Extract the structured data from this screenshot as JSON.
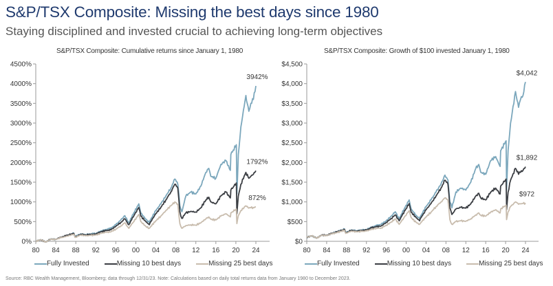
{
  "header": {
    "title": "S&P/TSX Composite: Missing the best days since 1980",
    "subtitle": "Staying disciplined and invested crucial to achieving long-term objectives"
  },
  "footer": {
    "source": "Source: RBC Wealth Management, Bloomberg; data through 12/31/23. Note: Calculations based on daily total returns data from January 1980 to December 2023."
  },
  "colors": {
    "fully_invested": "#7ba7bc",
    "missing_10": "#3a3d42",
    "missing_25": "#c8bcad",
    "axis": "#999999"
  },
  "chart_data": [
    {
      "type": "line",
      "title": "S&P/TSX Composite: Cumulative returns since January 1, 1980",
      "xlabel": "",
      "ylabel": "",
      "xlim": [
        1980,
        2024
      ],
      "ylim": [
        0,
        4500
      ],
      "x_tick_values": [
        1980,
        1984,
        1988,
        1992,
        1996,
        2000,
        2004,
        2008,
        2012,
        2016,
        2020,
        2024
      ],
      "x_tick_labels": [
        "80",
        "84",
        "88",
        "92",
        "96",
        "00",
        "04",
        "08",
        "12",
        "16",
        "20",
        "24"
      ],
      "y_tick_values": [
        0,
        500,
        1000,
        1500,
        2000,
        2500,
        3000,
        3500,
        4000,
        4500
      ],
      "y_tick_labels": [
        "0%",
        "500%",
        "1000%",
        "1500%",
        "2000%",
        "2500%",
        "3000%",
        "3500%",
        "4000%",
        "4500%"
      ],
      "grid": false,
      "legend": "bottom",
      "x": [
        1980,
        1981,
        1982,
        1983,
        1984,
        1985,
        1986,
        1987.6,
        1987.85,
        1988,
        1989,
        1990,
        1991,
        1992,
        1993,
        1994,
        1995,
        1996,
        1997,
        1997.8,
        1998.6,
        1999,
        2000.6,
        2001,
        2002,
        2002.7,
        2003,
        2004,
        2005,
        2006,
        2007,
        2007.8,
        2008.4,
        2008.8,
        2009.2,
        2010,
        2011,
        2012,
        2013,
        2014,
        2014.6,
        2015,
        2016,
        2017,
        2018,
        2018.9,
        2019,
        2020.1,
        2020.2,
        2020.5,
        2021,
        2022,
        2022.6,
        2023,
        2023.5,
        2024
      ],
      "series": [
        {
          "name": "Fully Invested",
          "end_label": "3942%",
          "values": [
            0,
            40,
            -20,
            60,
            50,
            100,
            140,
            210,
            120,
            130,
            190,
            170,
            190,
            200,
            260,
            300,
            330,
            420,
            540,
            650,
            470,
            580,
            950,
            720,
            560,
            470,
            560,
            780,
            950,
            1150,
            1350,
            1580,
            1450,
            900,
            750,
            1150,
            1250,
            1200,
            1400,
            1750,
            1850,
            1650,
            1600,
            1950,
            2050,
            1800,
            2200,
            2450,
            1200,
            2200,
            2900,
            3700,
            3300,
            3500,
            3600,
            3942
          ]
        },
        {
          "name": "Missing 10 best days",
          "end_label": "1792%",
          "values": [
            0,
            40,
            -20,
            60,
            50,
            100,
            140,
            200,
            110,
            120,
            180,
            160,
            175,
            185,
            240,
            270,
            290,
            380,
            480,
            570,
            420,
            520,
            860,
            640,
            500,
            420,
            500,
            700,
            860,
            1050,
            1250,
            1450,
            1350,
            750,
            580,
            720,
            760,
            740,
            850,
            1050,
            1120,
            1000,
            950,
            1150,
            1250,
            1100,
            1300,
            1480,
            700,
            1150,
            1450,
            1750,
            1600,
            1650,
            1700,
            1792
          ]
        },
        {
          "name": "Missing 25 best days",
          "end_label": "872%",
          "values": [
            0,
            40,
            -20,
            55,
            45,
            90,
            120,
            180,
            100,
            110,
            160,
            140,
            150,
            160,
            200,
            230,
            240,
            310,
            390,
            470,
            330,
            400,
            680,
            500,
            380,
            330,
            380,
            520,
            640,
            780,
            900,
            1000,
            940,
            450,
            330,
            400,
            420,
            410,
            470,
            570,
            620,
            560,
            540,
            640,
            700,
            620,
            720,
            820,
            450,
            650,
            780,
            900,
            840,
            850,
            860,
            872
          ]
        }
      ]
    },
    {
      "type": "line",
      "title": "S&P/TSX Composite: Growth of $100 invested January 1, 1980",
      "xlabel": "",
      "ylabel": "",
      "xlim": [
        1980,
        2024
      ],
      "ylim": [
        0,
        4500
      ],
      "x_tick_values": [
        1980,
        1984,
        1988,
        1992,
        1996,
        2000,
        2004,
        2008,
        2012,
        2016,
        2020,
        2024
      ],
      "x_tick_labels": [
        "80",
        "84",
        "88",
        "92",
        "96",
        "00",
        "04",
        "08",
        "12",
        "16",
        "20",
        "24"
      ],
      "y_tick_values": [
        0,
        500,
        1000,
        1500,
        2000,
        2500,
        3000,
        3500,
        4000,
        4500
      ],
      "y_tick_labels": [
        "$0",
        "$500",
        "$1,000",
        "$1,500",
        "$2,000",
        "$2,500",
        "$3,000",
        "$3,500",
        "$4,000",
        "$4,500"
      ],
      "grid": false,
      "legend": "bottom",
      "x": [
        1980,
        1981,
        1982,
        1983,
        1984,
        1985,
        1986,
        1987.6,
        1987.85,
        1988,
        1989,
        1990,
        1991,
        1992,
        1993,
        1994,
        1995,
        1996,
        1997,
        1997.8,
        1998.6,
        1999,
        2000.6,
        2001,
        2002,
        2002.7,
        2003,
        2004,
        2005,
        2006,
        2007,
        2007.8,
        2008.4,
        2008.8,
        2009.2,
        2010,
        2011,
        2012,
        2013,
        2014,
        2014.6,
        2015,
        2016,
        2017,
        2018,
        2018.9,
        2019,
        2020.1,
        2020.2,
        2020.5,
        2021,
        2022,
        2022.6,
        2023,
        2023.5,
        2024
      ],
      "series": [
        {
          "name": "Fully Invested",
          "end_label": "$4,042",
          "values": [
            100,
            140,
            80,
            160,
            150,
            200,
            240,
            310,
            220,
            230,
            290,
            270,
            290,
            300,
            360,
            400,
            430,
            520,
            640,
            750,
            570,
            680,
            1050,
            820,
            660,
            570,
            660,
            880,
            1050,
            1250,
            1450,
            1680,
            1550,
            1000,
            850,
            1250,
            1350,
            1300,
            1500,
            1850,
            1950,
            1750,
            1700,
            2050,
            2150,
            1900,
            2300,
            2550,
            1300,
            2300,
            3000,
            3800,
            3400,
            3600,
            3700,
            4042
          ]
        },
        {
          "name": "Missing 10 best days",
          "end_label": "$1,892",
          "values": [
            100,
            140,
            80,
            160,
            150,
            200,
            240,
            300,
            210,
            220,
            280,
            260,
            275,
            285,
            340,
            370,
            390,
            480,
            580,
            670,
            520,
            620,
            960,
            740,
            600,
            520,
            600,
            800,
            960,
            1150,
            1350,
            1550,
            1450,
            850,
            680,
            820,
            860,
            840,
            950,
            1150,
            1220,
            1100,
            1050,
            1250,
            1350,
            1200,
            1400,
            1580,
            800,
            1250,
            1550,
            1850,
            1700,
            1750,
            1800,
            1892
          ]
        },
        {
          "name": "Missing 25 best days",
          "end_label": "$972",
          "values": [
            100,
            140,
            80,
            155,
            145,
            190,
            220,
            280,
            200,
            210,
            260,
            240,
            250,
            260,
            300,
            330,
            340,
            410,
            490,
            570,
            430,
            500,
            780,
            600,
            480,
            430,
            480,
            620,
            740,
            880,
            1000,
            1100,
            1040,
            550,
            430,
            500,
            520,
            510,
            570,
            670,
            720,
            660,
            640,
            740,
            800,
            720,
            820,
            920,
            550,
            750,
            880,
            1000,
            940,
            950,
            960,
            972
          ]
        }
      ]
    }
  ]
}
